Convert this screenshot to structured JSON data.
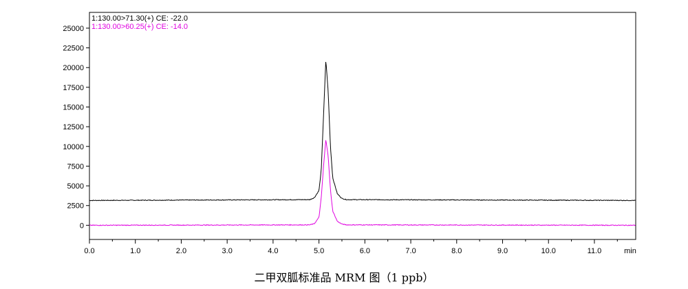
{
  "caption": "二甲双胍标准品 MRM 图（1 ppb）",
  "chart_data": {
    "type": "line",
    "x_unit": "min",
    "xlim": [
      0.0,
      11.9
    ],
    "ylim": [
      -1800,
      27000
    ],
    "x_ticks": [
      "0.0",
      "1.0",
      "2.0",
      "3.0",
      "4.0",
      "5.0",
      "6.0",
      "7.0",
      "8.0",
      "9.0",
      "10.0",
      "11.0"
    ],
    "x_unit_label": "min",
    "y_ticks": [
      "0",
      "2500",
      "5000",
      "7500",
      "10000",
      "12500",
      "15000",
      "17500",
      "20000",
      "22500",
      "25000"
    ],
    "y_tick_values": [
      0,
      2500,
      5000,
      7500,
      10000,
      12500,
      15000,
      17500,
      20000,
      22500,
      25000
    ],
    "grid": false,
    "legend_position": "top-left",
    "series": [
      {
        "name": "1:130.00>71.30(+) CE: -22.0",
        "color": "#000000",
        "x": [
          0.0,
          4.8,
          4.9,
          5.0,
          5.05,
          5.1,
          5.15,
          5.2,
          5.25,
          5.3,
          5.4,
          5.5,
          5.6,
          11.9
        ],
        "y": [
          3150,
          3250,
          3500,
          4400,
          7000,
          14000,
          21000,
          17000,
          10000,
          6000,
          4000,
          3400,
          3250,
          3150
        ]
      },
      {
        "name": "1:130.00>60.25(+) CE: -14.0",
        "color": "#e000e0",
        "x": [
          0.0,
          4.8,
          4.9,
          5.0,
          5.05,
          5.1,
          5.15,
          5.2,
          5.25,
          5.3,
          5.4,
          5.5,
          5.6,
          11.9
        ],
        "y": [
          0,
          50,
          200,
          1000,
          3500,
          7500,
          10900,
          8800,
          4500,
          1800,
          500,
          150,
          50,
          0
        ]
      }
    ]
  }
}
